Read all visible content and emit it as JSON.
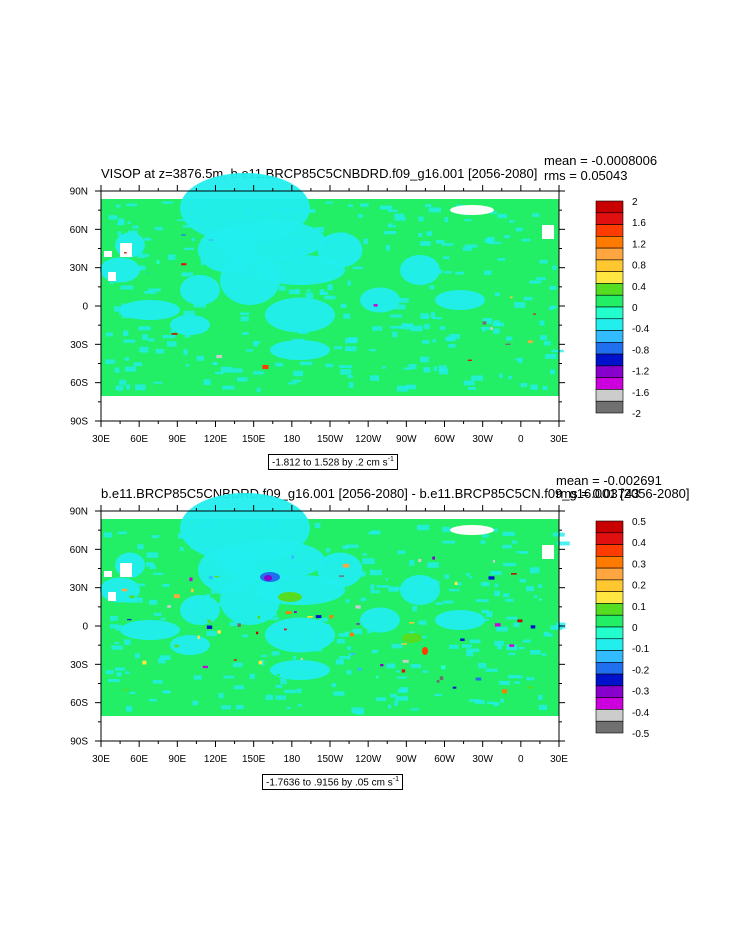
{
  "panels": [
    {
      "title": "VISOP at z=3876.5m, b.e11.BRCP85C5CNBDRD.f09_g16.001 [2056-2080]",
      "mean": "mean = -0.0008006",
      "rms": "rms = 0.05043",
      "range_text": "-1.812 to 1.528 by .2 cm s",
      "range_unit_sup": "-1"
    },
    {
      "title": "b.e11.BRCP85C5CNBDRD.f09_g16.001 [2056-2080] - b.e11.BRCP85C5CN.f09_g16.001 [2056-2080]",
      "mean": "mean = -0.002691",
      "rms": "rms = 0.03743",
      "range_text": "-1.7636 to .9156 by .05 cm s",
      "range_unit_sup": "-1"
    }
  ],
  "chart_data": [
    {
      "type": "heatmap",
      "variable": "VISOP",
      "level": "z=3876.5m",
      "case": "b.e11.BRCP85C5CNBDRD.f09_g16.001",
      "period": "2056-2080",
      "units": "cm s-1",
      "stats": {
        "mean": -0.0008006,
        "rms": 0.05043,
        "min": -1.812,
        "max": 1.528,
        "interval": 0.2
      },
      "x_ticks": [
        "30E",
        "60E",
        "90E",
        "120E",
        "150E",
        "180",
        "150W",
        "120W",
        "90W",
        "60W",
        "30W",
        "0",
        "30E"
      ],
      "y_ticks": [
        "90N",
        "60N",
        "30N",
        "0",
        "30S",
        "60S",
        "90S"
      ],
      "colorbar": {
        "levels": [
          "2",
          "1.6",
          "1.2",
          "0.8",
          "0.4",
          "0",
          "-0.4",
          "-0.8",
          "-1.2",
          "-1.6",
          "-2"
        ],
        "colors": [
          "#c80000",
          "#e01010",
          "#ff3c00",
          "#ff7a00",
          "#ffa640",
          "#ffc830",
          "#ffe640",
          "#55dd22",
          "#22ee66",
          "#22ffcc",
          "#22eeee",
          "#33bbff",
          "#1f6fee",
          "#0011cc",
          "#8800cc",
          "#cc00dd",
          "#cccccc",
          "#707070"
        ]
      },
      "dominant_values": [
        "0",
        "-0.4 to 0"
      ]
    },
    {
      "type": "heatmap",
      "variable": "VISOP difference",
      "level": "z=3876.5m",
      "case_a": "b.e11.BRCP85C5CNBDRD.f09_g16.001",
      "case_b": "b.e11.BRCP85C5CN.f09_g16.001",
      "period": "2056-2080",
      "units": "cm s-1",
      "stats": {
        "mean": -0.002691,
        "rms": 0.03743,
        "min": -1.7636,
        "max": 0.9156,
        "interval": 0.05
      },
      "x_ticks": [
        "30E",
        "60E",
        "90E",
        "120E",
        "150E",
        "180",
        "150W",
        "120W",
        "90W",
        "60W",
        "30W",
        "0",
        "30E"
      ],
      "y_ticks": [
        "90N",
        "60N",
        "30N",
        "0",
        "30S",
        "60S",
        "90S"
      ],
      "colorbar": {
        "levels": [
          "0.5",
          "0.4",
          "0.3",
          "0.2",
          "0.1",
          "0",
          "-0.1",
          "-0.2",
          "-0.3",
          "-0.4",
          "-0.5"
        ],
        "colors": [
          "#c80000",
          "#e01010",
          "#ff3c00",
          "#ff7a00",
          "#ffa640",
          "#ffc830",
          "#ffe640",
          "#55dd22",
          "#22ee66",
          "#22ffcc",
          "#22eeee",
          "#33bbff",
          "#1f6fee",
          "#0011cc",
          "#8800cc",
          "#cc00dd",
          "#cccccc",
          "#707070"
        ]
      },
      "dominant_values": [
        "0",
        "-0.1 to 0"
      ]
    }
  ],
  "colors": {
    "background_field": "#22ee66",
    "cyan_field": "#22eeee",
    "land_mask": "#ffffff"
  }
}
